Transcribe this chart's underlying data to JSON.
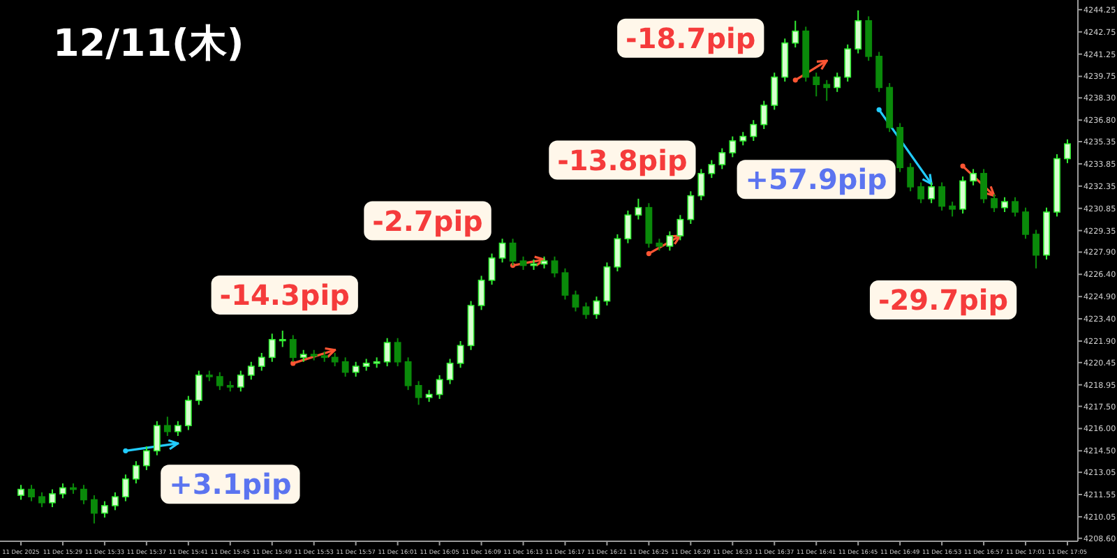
{
  "chart_data": {
    "type": "candlestick",
    "title": "12/11(木)",
    "x": [
      "2025-12-11T15:25",
      "2025-12-11T15:26",
      "2025-12-11T15:27",
      "2025-12-11T15:28",
      "2025-12-11T15:29",
      "2025-12-11T15:30",
      "2025-12-11T15:31",
      "2025-12-11T15:32",
      "2025-12-11T15:33",
      "2025-12-11T15:34",
      "2025-12-11T15:35",
      "2025-12-11T15:36",
      "2025-12-11T15:37",
      "2025-12-11T15:38",
      "2025-12-11T15:39",
      "2025-12-11T15:40",
      "2025-12-11T15:41",
      "2025-12-11T15:42",
      "2025-12-11T15:43",
      "2025-12-11T15:44",
      "2025-12-11T15:45",
      "2025-12-11T15:46",
      "2025-12-11T15:47",
      "2025-12-11T15:48",
      "2025-12-11T15:49",
      "2025-12-11T15:50",
      "2025-12-11T15:51",
      "2025-12-11T15:52",
      "2025-12-11T15:53",
      "2025-12-11T15:54",
      "2025-12-11T15:55",
      "2025-12-11T15:56",
      "2025-12-11T15:57",
      "2025-12-11T15:58",
      "2025-12-11T15:59",
      "2025-12-11T16:00",
      "2025-12-11T16:01",
      "2025-12-11T16:02",
      "2025-12-11T16:03",
      "2025-12-11T16:04",
      "2025-12-11T16:05",
      "2025-12-11T16:06",
      "2025-12-11T16:07",
      "2025-12-11T16:08",
      "2025-12-11T16:09",
      "2025-12-11T16:10",
      "2025-12-11T16:11",
      "2025-12-11T16:12",
      "2025-12-11T16:13",
      "2025-12-11T16:14",
      "2025-12-11T16:15",
      "2025-12-11T16:16",
      "2025-12-11T16:17",
      "2025-12-11T16:18",
      "2025-12-11T16:19",
      "2025-12-11T16:20",
      "2025-12-11T16:21",
      "2025-12-11T16:22",
      "2025-12-11T16:23",
      "2025-12-11T16:24",
      "2025-12-11T16:25",
      "2025-12-11T16:26",
      "2025-12-11T16:27",
      "2025-12-11T16:28",
      "2025-12-11T16:29",
      "2025-12-11T16:30",
      "2025-12-11T16:31",
      "2025-12-11T16:32",
      "2025-12-11T16:33",
      "2025-12-11T16:34",
      "2025-12-11T16:35",
      "2025-12-11T16:36",
      "2025-12-11T16:37",
      "2025-12-11T16:38",
      "2025-12-11T16:39",
      "2025-12-11T16:40",
      "2025-12-11T16:41",
      "2025-12-11T16:42",
      "2025-12-11T16:43",
      "2025-12-11T16:44",
      "2025-12-11T16:45",
      "2025-12-11T16:46",
      "2025-12-11T16:47",
      "2025-12-11T16:48",
      "2025-12-11T16:49",
      "2025-12-11T16:50",
      "2025-12-11T16:51",
      "2025-12-11T16:52",
      "2025-12-11T16:53",
      "2025-12-11T16:54",
      "2025-12-11T16:55",
      "2025-12-11T16:56",
      "2025-12-11T16:57",
      "2025-12-11T16:58",
      "2025-12-11T16:59",
      "2025-12-11T17:00",
      "2025-12-11T17:01",
      "2025-12-11T17:02",
      "2025-12-11T17:03",
      "2025-12-11T17:04",
      "2025-12-11T17:05"
    ],
    "ohlc": [
      [
        4211.5,
        4212.2,
        4211.2,
        4211.9
      ],
      [
        4211.9,
        4212.2,
        4211.1,
        4211.4
      ],
      [
        4211.4,
        4211.7,
        4210.7,
        4211.0
      ],
      [
        4211.0,
        4211.9,
        4210.7,
        4211.6
      ],
      [
        4211.6,
        4212.3,
        4211.3,
        4212.0
      ],
      [
        4212.0,
        4212.3,
        4211.6,
        4211.9
      ],
      [
        4211.9,
        4212.2,
        4210.9,
        4211.2
      ],
      [
        4211.2,
        4211.5,
        4209.6,
        4210.3
      ],
      [
        4210.3,
        4211.1,
        4210.0,
        4210.8
      ],
      [
        4210.8,
        4211.7,
        4210.5,
        4211.4
      ],
      [
        4211.4,
        4212.9,
        4211.1,
        4212.6
      ],
      [
        4212.6,
        4213.8,
        4212.3,
        4213.5
      ],
      [
        4213.5,
        4214.8,
        4213.2,
        4214.5
      ],
      [
        4214.5,
        4216.5,
        4214.2,
        4216.2
      ],
      [
        4216.2,
        4216.8,
        4215.5,
        4215.8
      ],
      [
        4215.8,
        4216.5,
        4215.5,
        4216.2
      ],
      [
        4216.2,
        4218.2,
        4215.9,
        4217.9
      ],
      [
        4217.9,
        4219.9,
        4217.6,
        4219.6
      ],
      [
        4219.6,
        4219.9,
        4219.2,
        4219.5
      ],
      [
        4219.5,
        4219.8,
        4218.6,
        4218.9
      ],
      [
        4218.9,
        4219.2,
        4218.5,
        4218.8
      ],
      [
        4218.8,
        4219.9,
        4218.5,
        4219.6
      ],
      [
        4219.6,
        4220.5,
        4219.3,
        4220.2
      ],
      [
        4220.2,
        4221.1,
        4219.9,
        4220.8
      ],
      [
        4220.8,
        4222.4,
        4220.5,
        4222.0
      ],
      [
        4222.0,
        4222.6,
        4221.5,
        4222.0
      ],
      [
        4222.0,
        4222.3,
        4220.5,
        4220.8
      ],
      [
        4220.8,
        4221.3,
        4220.5,
        4221.0
      ],
      [
        4221.0,
        4221.3,
        4220.6,
        4220.9
      ],
      [
        4220.9,
        4221.2,
        4220.5,
        4220.8
      ],
      [
        4220.8,
        4221.1,
        4220.2,
        4220.5
      ],
      [
        4220.5,
        4220.8,
        4219.5,
        4219.8
      ],
      [
        4219.8,
        4220.5,
        4219.5,
        4220.2
      ],
      [
        4220.2,
        4220.7,
        4219.9,
        4220.4
      ],
      [
        4220.4,
        4220.8,
        4220.1,
        4220.5
      ],
      [
        4220.5,
        4222.1,
        4220.2,
        4221.8
      ],
      [
        4221.8,
        4222.1,
        4220.2,
        4220.5
      ],
      [
        4220.5,
        4220.8,
        4218.6,
        4218.9
      ],
      [
        4218.9,
        4219.2,
        4217.6,
        4218.1
      ],
      [
        4218.1,
        4218.6,
        4217.8,
        4218.3
      ],
      [
        4218.3,
        4219.6,
        4218.0,
        4219.3
      ],
      [
        4219.3,
        4220.7,
        4219.0,
        4220.4
      ],
      [
        4220.4,
        4221.9,
        4220.1,
        4221.6
      ],
      [
        4221.6,
        4224.6,
        4221.3,
        4224.3
      ],
      [
        4224.3,
        4226.3,
        4224.0,
        4226.0
      ],
      [
        4226.0,
        4227.8,
        4225.7,
        4227.5
      ],
      [
        4227.5,
        4228.8,
        4227.2,
        4228.5
      ],
      [
        4228.5,
        4228.8,
        4227.0,
        4227.3
      ],
      [
        4227.3,
        4227.6,
        4226.7,
        4227.0
      ],
      [
        4227.0,
        4227.4,
        4226.7,
        4227.1
      ],
      [
        4227.1,
        4227.6,
        4226.8,
        4227.3
      ],
      [
        4227.3,
        4227.6,
        4226.2,
        4226.5
      ],
      [
        4226.5,
        4226.8,
        4224.7,
        4225.0
      ],
      [
        4225.0,
        4225.3,
        4223.9,
        4224.2
      ],
      [
        4224.2,
        4224.5,
        4223.4,
        4223.7
      ],
      [
        4223.7,
        4224.9,
        4223.4,
        4224.6
      ],
      [
        4224.6,
        4227.2,
        4224.3,
        4226.9
      ],
      [
        4226.9,
        4229.1,
        4226.6,
        4228.8
      ],
      [
        4228.8,
        4230.7,
        4228.5,
        4230.4
      ],
      [
        4230.4,
        4231.5,
        4230.1,
        4230.9
      ],
      [
        4230.9,
        4231.2,
        4228.2,
        4228.5
      ],
      [
        4228.5,
        4228.8,
        4228.0,
        4228.3
      ],
      [
        4228.3,
        4229.3,
        4228.0,
        4229.0
      ],
      [
        4229.0,
        4230.4,
        4228.7,
        4230.1
      ],
      [
        4230.1,
        4232.0,
        4229.8,
        4231.7
      ],
      [
        4231.7,
        4233.5,
        4231.4,
        4233.2
      ],
      [
        4233.2,
        4234.1,
        4232.9,
        4233.8
      ],
      [
        4233.8,
        4234.9,
        4233.5,
        4234.6
      ],
      [
        4234.6,
        4235.7,
        4234.3,
        4235.4
      ],
      [
        4235.4,
        4236.0,
        4235.1,
        4235.7
      ],
      [
        4235.7,
        4236.8,
        4235.4,
        4236.5
      ],
      [
        4236.5,
        4238.1,
        4236.2,
        4237.8
      ],
      [
        4237.8,
        4240.0,
        4237.5,
        4239.7
      ],
      [
        4239.7,
        4242.3,
        4239.4,
        4242.0
      ],
      [
        4242.0,
        4243.5,
        4241.7,
        4242.8
      ],
      [
        4242.8,
        4243.1,
        4239.4,
        4239.7
      ],
      [
        4239.7,
        4240.0,
        4238.4,
        4239.2
      ],
      [
        4239.2,
        4239.5,
        4238.1,
        4239.0
      ],
      [
        4239.0,
        4240.0,
        4238.7,
        4239.7
      ],
      [
        4239.7,
        4241.9,
        4239.4,
        4241.6
      ],
      [
        4241.6,
        4244.2,
        4241.3,
        4243.5
      ],
      [
        4243.5,
        4243.8,
        4240.8,
        4241.1
      ],
      [
        4241.1,
        4241.4,
        4238.7,
        4239.0
      ],
      [
        4239.0,
        4239.3,
        4236.0,
        4236.3
      ],
      [
        4236.3,
        4236.6,
        4233.3,
        4233.6
      ],
      [
        4233.6,
        4233.9,
        4232.0,
        4232.3
      ],
      [
        4232.3,
        4232.6,
        4231.2,
        4231.5
      ],
      [
        4231.5,
        4232.6,
        4231.2,
        4232.3
      ],
      [
        4232.3,
        4232.6,
        4230.7,
        4231.0
      ],
      [
        4231.0,
        4231.3,
        4230.3,
        4230.8
      ],
      [
        4230.8,
        4233.0,
        4230.5,
        4232.7
      ],
      [
        4232.7,
        4233.5,
        4232.4,
        4233.2
      ],
      [
        4233.2,
        4233.5,
        4231.2,
        4231.5
      ],
      [
        4231.5,
        4231.8,
        4230.6,
        4230.9
      ],
      [
        4230.9,
        4231.6,
        4230.6,
        4231.3
      ],
      [
        4231.3,
        4231.6,
        4230.3,
        4230.6
      ],
      [
        4230.6,
        4230.9,
        4228.8,
        4229.1
      ],
      [
        4229.1,
        4229.4,
        4226.8,
        4227.7
      ],
      [
        4227.7,
        4230.9,
        4227.4,
        4230.6
      ],
      [
        4230.6,
        4234.5,
        4230.3,
        4234.2
      ],
      [
        4234.2,
        4235.5,
        4233.9,
        4235.2
      ]
    ],
    "series": [
      {
        "type": "line",
        "color": "#22ccff",
        "x": [
          "2025-12-11T15:35",
          "2025-12-11T15:40"
        ],
        "values": [
          4214.5,
          4215.0
        ]
      },
      {
        "type": "line",
        "color": "#ff5533",
        "x": [
          "2025-12-11T15:51",
          "2025-12-11T15:55"
        ],
        "values": [
          4220.4,
          4221.3
        ]
      },
      {
        "type": "line",
        "color": "#ff5533",
        "x": [
          "2025-12-11T16:12",
          "2025-12-11T16:15"
        ],
        "values": [
          4227.0,
          4227.4
        ]
      },
      {
        "type": "line",
        "color": "#ff5533",
        "x": [
          "2025-12-11T16:25",
          "2025-12-11T16:28"
        ],
        "values": [
          4227.8,
          4229.0
        ]
      },
      {
        "type": "line",
        "color": "#ff5533",
        "x": [
          "2025-12-11T16:39",
          "2025-12-11T16:42"
        ],
        "values": [
          4239.5,
          4240.8
        ]
      },
      {
        "type": "line",
        "color": "#22ccff",
        "x": [
          "2025-12-11T16:47",
          "2025-12-11T16:52"
        ],
        "values": [
          4237.5,
          4232.5
        ]
      },
      {
        "type": "line",
        "color": "#ff5533",
        "x": [
          "2025-12-11T16:55",
          "2025-12-11T16:58"
        ],
        "values": [
          4233.7,
          4231.7
        ]
      }
    ],
    "annotations": [
      "+3.1pip",
      "-14.3pip",
      "-2.7pip",
      "-13.8pip",
      "-18.7pip",
      "+57.9pip",
      "-29.7pip"
    ],
    "xlim": [
      "2025-12-11T15:23",
      "2025-12-11T17:06"
    ],
    "ylim": [
      4208.4,
      4244.9
    ],
    "xticks": [
      {
        "value": "2025-12-11T15:25",
        "label": "11 Dec 2025"
      },
      {
        "value": "2025-12-11T15:29",
        "label": "11 Dec 15:29"
      },
      {
        "value": "2025-12-11T15:33",
        "label": "11 Dec 15:33"
      },
      {
        "value": "2025-12-11T15:37",
        "label": "11 Dec 15:37"
      },
      {
        "value": "2025-12-11T15:41",
        "label": "11 Dec 15:41"
      },
      {
        "value": "2025-12-11T15:45",
        "label": "11 Dec 15:45"
      },
      {
        "value": "2025-12-11T15:49",
        "label": "11 Dec 15:49"
      },
      {
        "value": "2025-12-11T15:53",
        "label": "11 Dec 15:53"
      },
      {
        "value": "2025-12-11T15:57",
        "label": "11 Dec 15:57"
      },
      {
        "value": "2025-12-11T16:01",
        "label": "11 Dec 16:01"
      },
      {
        "value": "2025-12-11T16:05",
        "label": "11 Dec 16:05"
      },
      {
        "value": "2025-12-11T16:09",
        "label": "11 Dec 16:09"
      },
      {
        "value": "2025-12-11T16:13",
        "label": "11 Dec 16:13"
      },
      {
        "value": "2025-12-11T16:17",
        "label": "11 Dec 16:17"
      },
      {
        "value": "2025-12-11T16:21",
        "label": "11 Dec 16:21"
      },
      {
        "value": "2025-12-11T16:25",
        "label": "11 Dec 16:25"
      },
      {
        "value": "2025-12-11T16:29",
        "label": "11 Dec 16:29"
      },
      {
        "value": "2025-12-11T16:33",
        "label": "11 Dec 16:33"
      },
      {
        "value": "2025-12-11T16:37",
        "label": "11 Dec 16:37"
      },
      {
        "value": "2025-12-11T16:41",
        "label": "11 Dec 16:41"
      },
      {
        "value": "2025-12-11T16:45",
        "label": "11 Dec 16:45"
      },
      {
        "value": "2025-12-11T16:49",
        "label": "11 Dec 16:49"
      },
      {
        "value": "2025-12-11T16:53",
        "label": "11 Dec 16:53"
      },
      {
        "value": "2025-12-11T16:57",
        "label": "11 Dec 16:57"
      },
      {
        "value": "2025-12-11T17:01",
        "label": "11 Dec 17:01"
      },
      {
        "value": "2025-12-11T17:05",
        "label": "11 Dec 17:05"
      }
    ],
    "yticks": [
      {
        "value": 4244.25,
        "label": "4244.25"
      },
      {
        "value": 4242.75,
        "label": "4242.75"
      },
      {
        "value": 4241.25,
        "label": "4241.25"
      },
      {
        "value": 4239.75,
        "label": "4239.75"
      },
      {
        "value": 4238.3,
        "label": "4238.30"
      },
      {
        "value": 4236.8,
        "label": "4236.80"
      },
      {
        "value": 4235.35,
        "label": "4235.35"
      },
      {
        "value": 4233.85,
        "label": "4233.85"
      },
      {
        "value": 4232.35,
        "label": "4232.35"
      },
      {
        "value": 4230.85,
        "label": "4230.85"
      },
      {
        "value": 4229.35,
        "label": "4229.35"
      },
      {
        "value": 4227.9,
        "label": "4227.90"
      },
      {
        "value": 4226.4,
        "label": "4226.40"
      },
      {
        "value": 4224.9,
        "label": "4224.90"
      },
      {
        "value": 4223.4,
        "label": "4223.40"
      },
      {
        "value": 4221.9,
        "label": "4221.90"
      },
      {
        "value": 4220.45,
        "label": "4220.45"
      },
      {
        "value": 4218.95,
        "label": "4218.95"
      },
      {
        "value": 4217.5,
        "label": "4217.50"
      },
      {
        "value": 4216.0,
        "label": "4216.00"
      },
      {
        "value": 4214.5,
        "label": "4214.50"
      },
      {
        "value": 4213.05,
        "label": "4213.05"
      },
      {
        "value": 4211.55,
        "label": "4211.55"
      },
      {
        "value": 4210.05,
        "label": "4210.05"
      },
      {
        "value": 4208.6,
        "label": "4208.60"
      }
    ]
  }
}
